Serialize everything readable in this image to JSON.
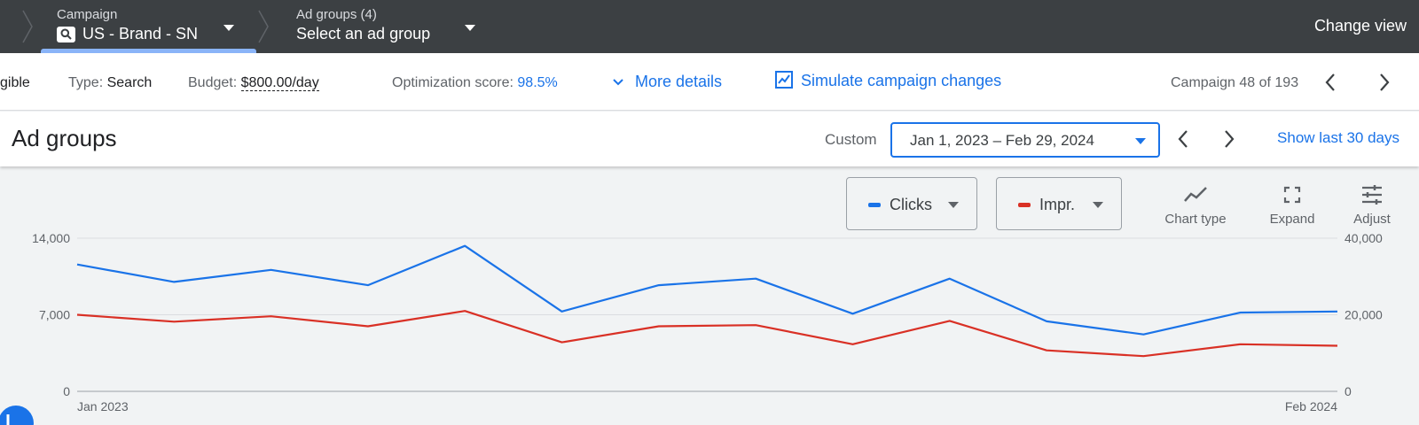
{
  "topbar": {
    "campaign_label": "Campaign",
    "campaign_name": "US - Brand - SN",
    "adgroups_label": "Ad groups (4)",
    "adgroups_select": "Select an ad group",
    "change_view": "Change view"
  },
  "info": {
    "status_fragment": "gible",
    "type_label": "Type:",
    "type_value": "Search",
    "budget_label": "Budget:",
    "budget_value": "$800.00/day",
    "opt_label": "Optimization score:",
    "opt_value": "98.5%",
    "more_details": "More details",
    "simulate": "Simulate campaign changes",
    "campaign_count": "Campaign 48 of 193"
  },
  "header": {
    "title": "Ad groups",
    "custom_label": "Custom",
    "date_range": "Jan 1, 2023 – Feb 29, 2024",
    "show_last": "Show last 30 days"
  },
  "chart_controls": {
    "metric1": "Clicks",
    "metric2": "Impr.",
    "chart_type": "Chart type",
    "expand": "Expand",
    "adjust": "Adjust"
  },
  "colors": {
    "clicks": "#1a73e8",
    "impr": "#d93025"
  },
  "chart_data": {
    "type": "line",
    "x": [
      "Jan 2023",
      "Feb 2023",
      "Mar 2023",
      "Apr 2023",
      "May 2023",
      "Jun 2023",
      "Jul 2023",
      "Aug 2023",
      "Sep 2023",
      "Oct 2023",
      "Nov 2023",
      "Dec 2023",
      "Jan 2024",
      "Feb 2024"
    ],
    "x_tick_labels": [
      "Jan 2023",
      "Feb 2024"
    ],
    "series": [
      {
        "name": "Clicks",
        "axis": "left",
        "values": [
          11600,
          10000,
          11100,
          9700,
          13300,
          7300,
          9700,
          10300,
          7100,
          10300,
          6400,
          5200,
          7200,
          7300
        ]
      },
      {
        "name": "Impr.",
        "axis": "right",
        "values": [
          20000,
          18200,
          19600,
          17000,
          21000,
          12800,
          17000,
          17300,
          12300,
          18400,
          10700,
          9200,
          12300,
          11900
        ]
      }
    ],
    "y_left": {
      "ylim": [
        0,
        14000
      ],
      "ticks": [
        0,
        7000,
        14000
      ],
      "tick_labels": [
        "0",
        "7,000",
        "14,000"
      ]
    },
    "y_right": {
      "ylim": [
        0,
        40000
      ],
      "ticks": [
        0,
        20000,
        40000
      ],
      "tick_labels": [
        "0",
        "20,000",
        "40,000"
      ]
    },
    "grid": true
  }
}
